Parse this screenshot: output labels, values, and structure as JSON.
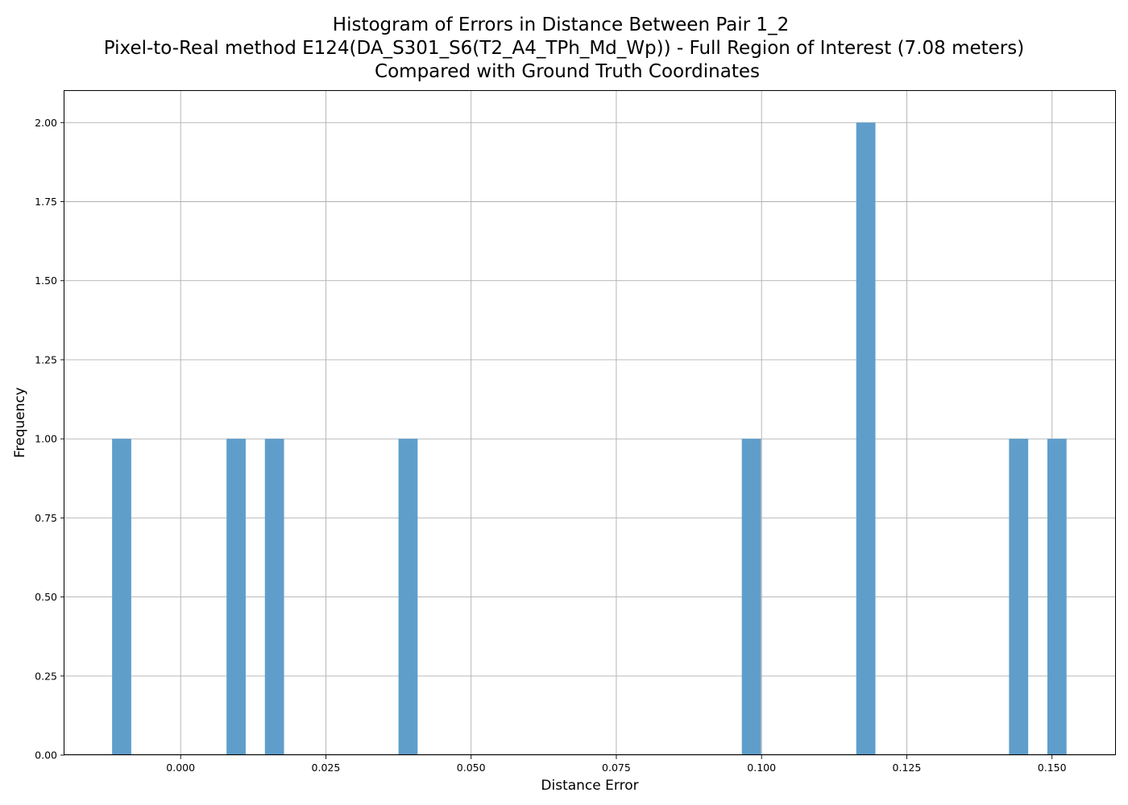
{
  "chart_data": {
    "type": "bar",
    "title_lines": [
      "Histogram of Errors in Distance Between Pair 1_2",
      "Pixel-to-Real method E124(DA_S301_S6(T2_A4_TPh_Md_Wp)) - Full Region of Interest (7.08 meters)",
      "Compared with Ground Truth Coordinates"
    ],
    "xlabel": "Distance Error",
    "ylabel": "Frequency",
    "xlim": [
      -0.02,
      0.161
    ],
    "ylim": [
      0,
      2.1
    ],
    "xticks": [
      {
        "value": 0.0,
        "label": "0.000"
      },
      {
        "value": 0.025,
        "label": "0.025"
      },
      {
        "value": 0.05,
        "label": "0.050"
      },
      {
        "value": 0.075,
        "label": "0.075"
      },
      {
        "value": 0.1,
        "label": "0.100"
      },
      {
        "value": 0.125,
        "label": "0.125"
      },
      {
        "value": 0.15,
        "label": "0.150"
      }
    ],
    "yticks": [
      {
        "value": 0.0,
        "label": "0.00"
      },
      {
        "value": 0.25,
        "label": "0.25"
      },
      {
        "value": 0.5,
        "label": "0.50"
      },
      {
        "value": 0.75,
        "label": "0.75"
      },
      {
        "value": 1.0,
        "label": "1.00"
      },
      {
        "value": 1.25,
        "label": "1.25"
      },
      {
        "value": 1.5,
        "label": "1.50"
      },
      {
        "value": 1.75,
        "label": "1.75"
      },
      {
        "value": 2.0,
        "label": "2.00"
      }
    ],
    "grid": true,
    "bar_color": "#5f9ecb",
    "bins": [
      {
        "start": -0.0118,
        "end": -0.0085,
        "count": 1
      },
      {
        "start": 0.0079,
        "end": 0.0112,
        "count": 1
      },
      {
        "start": 0.0145,
        "end": 0.0178,
        "count": 1
      },
      {
        "start": 0.0375,
        "end": 0.0408,
        "count": 1
      },
      {
        "start": 0.0966,
        "end": 0.0999,
        "count": 1
      },
      {
        "start": 0.1163,
        "end": 0.1196,
        "count": 2
      },
      {
        "start": 0.1426,
        "end": 0.1459,
        "count": 1
      },
      {
        "start": 0.1492,
        "end": 0.1525,
        "count": 1
      }
    ]
  }
}
